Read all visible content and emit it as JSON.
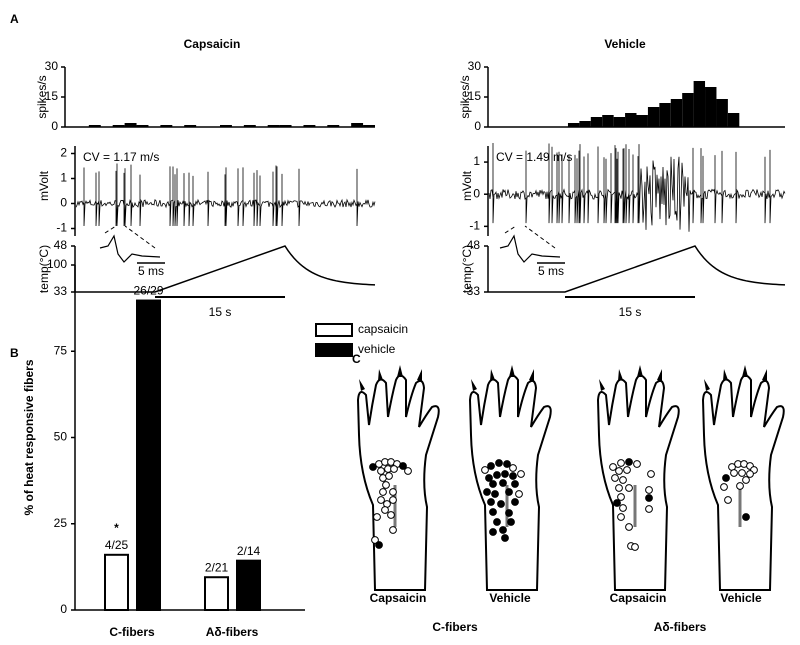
{
  "panel_labels": {
    "a": "A",
    "b": "B",
    "c": "C"
  },
  "chart_data": [
    {
      "type": "histogram",
      "title": "Capsaicin",
      "ylabel": "spikes/s",
      "color": "#000000",
      "bins": [
        0,
        1,
        2,
        3,
        4,
        5,
        6,
        7,
        8,
        9,
        10,
        11,
        12,
        13,
        14,
        15,
        16,
        17,
        18,
        19,
        20,
        21,
        22,
        23,
        24,
        25,
        26
      ],
      "values": [
        0,
        0,
        1,
        0,
        1,
        2,
        1,
        0,
        1,
        0,
        1,
        0,
        0,
        1,
        0,
        1,
        0,
        1,
        1,
        0,
        1,
        0,
        1,
        0,
        2,
        1
      ],
      "xlim": [
        0,
        26
      ],
      "ylim": [
        0,
        30
      ],
      "yticks": [
        0,
        15,
        30
      ]
    },
    {
      "type": "histogram",
      "title": "Vehicle",
      "ylabel": "spikes/s",
      "color": "#000000",
      "bins": [
        0,
        1,
        2,
        3,
        4,
        5,
        6,
        7,
        8,
        9,
        10,
        11,
        12,
        13,
        14,
        15,
        16,
        17,
        18,
        19,
        20,
        21,
        22,
        23,
        24,
        25,
        26
      ],
      "values": [
        0,
        0,
        0,
        0,
        0,
        0,
        0,
        2,
        3,
        5,
        6,
        5,
        7,
        6,
        10,
        12,
        14,
        17,
        23,
        20,
        14,
        7,
        0,
        0,
        0,
        0
      ],
      "xlim": [
        0,
        26
      ],
      "ylim": [
        0,
        30
      ],
      "yticks": [
        0,
        15,
        30
      ]
    },
    {
      "type": "bar",
      "ylabel": "% of heat responsive fibers",
      "categories": [
        "C-fibers",
        "Aδ-fibers"
      ],
      "series": [
        {
          "name": "capsaicin",
          "color": "#ffffff",
          "values": [
            16,
            9.5
          ],
          "value_labels": [
            "4/25",
            "2/21"
          ]
        },
        {
          "name": "vehicle",
          "color": "#000000",
          "values": [
            89.7,
            14.3
          ],
          "value_labels": [
            "26/29",
            "2/14"
          ]
        }
      ],
      "ylim": [
        0,
        100
      ],
      "yticks": [
        0,
        25,
        50,
        75,
        100
      ],
      "legend": "top-right",
      "annotation": "*"
    }
  ],
  "traces": [
    {
      "cv": "CV = 1.17 m/s",
      "ylabel": "mVolt",
      "ylim": [
        -1.3,
        2.3
      ],
      "yticks": [
        -1,
        0,
        1,
        2
      ],
      "temp_label": "temp(°C)",
      "temp_ticks": [
        33,
        48
      ],
      "temp_lim": [
        33,
        48
      ],
      "scale_ms": "5 ms",
      "scale_s": "15 s"
    },
    {
      "cv": "CV = 1.49 m/s",
      "ylabel": "mVolt",
      "ylim": [
        -1.3,
        1.5
      ],
      "yticks": [
        -1,
        0,
        1
      ],
      "temp_label": "temp(°C)",
      "temp_ticks": [
        33,
        48
      ],
      "temp_lim": [
        33,
        48
      ],
      "scale_ms": "5 ms",
      "scale_s": "15 s"
    }
  ],
  "panel_c": {
    "groups": [
      {
        "title": "C-fibers",
        "labels": [
          "Capsaicin",
          "Vehicle"
        ]
      },
      {
        "title": "Aδ-fibers",
        "labels": [
          "Capsaicin",
          "Vehicle"
        ]
      }
    ]
  }
}
